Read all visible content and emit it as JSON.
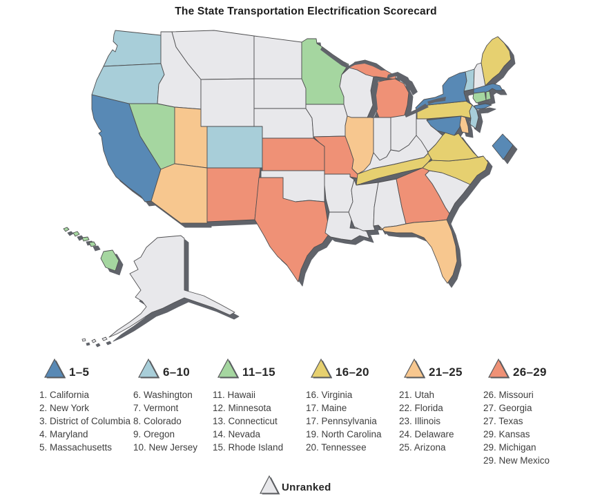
{
  "title": "The State Transportation Electrification Scorecard",
  "legend": {
    "groups": [
      {
        "key": "1-5",
        "label": "1–5",
        "states": [
          "1. California",
          "2. New York",
          "3. District of Columbia",
          "4. Maryland",
          "5. Massachusetts"
        ]
      },
      {
        "key": "6-10",
        "label": "6–10",
        "states": [
          "6. Washington",
          "7. Vermont",
          "8. Colorado",
          "9. Oregon",
          "10. New Jersey"
        ]
      },
      {
        "key": "11-15",
        "label": "11–15",
        "states": [
          "11. Hawaii",
          "12. Minnesota",
          "13. Connecticut",
          "14. Nevada",
          "15. Rhode Island"
        ]
      },
      {
        "key": "16-20",
        "label": "16–20",
        "states": [
          "16. Virginia",
          "17. Maine",
          "17. Pennsylvania",
          "19. North Carolina",
          "20. Tennessee"
        ]
      },
      {
        "key": "21-25",
        "label": "21–25",
        "states": [
          "21. Utah",
          "22. Florida",
          "23. Illinois",
          "24. Delaware",
          "25. Arizona"
        ]
      },
      {
        "key": "26-29",
        "label": "26–29",
        "states": [
          "26. Missouri",
          "27. Georgia",
          "27. Texas",
          "29. Kansas",
          "29. Michigan",
          "29. New Mexico"
        ]
      }
    ],
    "unranked_label": "Unranked"
  },
  "map": {
    "colors": {
      "1-5": "#5889B5",
      "6-10": "#A8CED9",
      "11-15": "#A5D6A0",
      "16-20": "#E6D06F",
      "21-25": "#F7C78F",
      "26-29": "#EF9176",
      "unranked": "#E8E8EB",
      "shadow": "#60646A",
      "border": "#4E4E50"
    },
    "assignments": {
      "WA": "6-10",
      "OR": "6-10",
      "CA": "1-5",
      "NV": "11-15",
      "ID": "unranked",
      "MT": "unranked",
      "WY": "unranked",
      "UT": "21-25",
      "CO": "6-10",
      "AZ": "21-25",
      "NM": "26-29",
      "ND": "unranked",
      "SD": "unranked",
      "NE": "unranked",
      "KS": "26-29",
      "OK": "unranked",
      "TX": "26-29",
      "MN": "11-15",
      "IA": "unranked",
      "MO": "26-29",
      "AR": "unranked",
      "LA": "unranked",
      "WI": "unranked",
      "IL": "21-25",
      "MI": "26-29",
      "IN": "unranked",
      "OH": "unranked",
      "KY": "unranked",
      "TN": "16-20",
      "MS": "unranked",
      "AL": "unranked",
      "GA": "26-29",
      "FL": "21-25",
      "SC": "unranked",
      "NC": "16-20",
      "VA": "16-20",
      "WV": "unranked",
      "MD": "1-5",
      "DE": "21-25",
      "NJ": "6-10",
      "PA": "16-20",
      "NY": "1-5",
      "CT": "11-15",
      "RI": "11-15",
      "MA": "1-5",
      "VT": "6-10",
      "NH": "unranked",
      "ME": "16-20",
      "AK": "unranked",
      "HI": "11-15",
      "DC": "1-5"
    }
  }
}
